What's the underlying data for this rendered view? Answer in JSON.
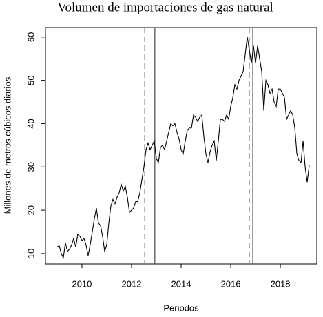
{
  "chart_data": {
    "type": "line",
    "title": "Volumen de importaciones de gas natural",
    "xlabel": "Periodos",
    "ylabel": "Millones de metros cúbicos diarios",
    "color": "#000000",
    "xlim": [
      2008.53,
      2019.47
    ],
    "ylim": [
      7.6,
      62.2
    ],
    "xticks": [
      2010,
      2012,
      2014,
      2016,
      2018
    ],
    "yticks": [
      10,
      20,
      30,
      40,
      50,
      60
    ],
    "vlines": [
      {
        "x": 2012.53,
        "style": "dashed"
      },
      {
        "x": 2012.94,
        "style": "solid"
      },
      {
        "x": 2016.75,
        "style": "dashed"
      },
      {
        "x": 2016.89,
        "style": "solid"
      }
    ],
    "x": [
      2009,
      2009.083,
      2009.167,
      2009.25,
      2009.333,
      2009.417,
      2009.5,
      2009.583,
      2009.667,
      2009.75,
      2009.833,
      2009.917,
      2010,
      2010.083,
      2010.167,
      2010.25,
      2010.333,
      2010.417,
      2010.5,
      2010.583,
      2010.667,
      2010.75,
      2010.833,
      2010.917,
      2011,
      2011.083,
      2011.167,
      2011.25,
      2011.333,
      2011.417,
      2011.5,
      2011.583,
      2011.667,
      2011.75,
      2011.833,
      2011.917,
      2012,
      2012.083,
      2012.167,
      2012.25,
      2012.333,
      2012.417,
      2012.5,
      2012.583,
      2012.667,
      2012.75,
      2012.833,
      2012.917,
      2013,
      2013.083,
      2013.167,
      2013.25,
      2013.333,
      2013.417,
      2013.5,
      2013.583,
      2013.667,
      2013.75,
      2013.833,
      2013.917,
      2014,
      2014.083,
      2014.167,
      2014.25,
      2014.333,
      2014.417,
      2014.5,
      2014.583,
      2014.667,
      2014.75,
      2014.833,
      2014.917,
      2015,
      2015.083,
      2015.167,
      2015.25,
      2015.333,
      2015.417,
      2015.5,
      2015.583,
      2015.667,
      2015.75,
      2015.833,
      2015.917,
      2016,
      2016.083,
      2016.167,
      2016.25,
      2016.333,
      2016.417,
      2016.5,
      2016.583,
      2016.667,
      2016.75,
      2016.833,
      2016.917,
      2017,
      2017.083,
      2017.167,
      2017.25,
      2017.333,
      2017.417,
      2017.5,
      2017.583,
      2017.667,
      2017.75,
      2017.833,
      2017.917,
      2018,
      2018.083,
      2018.167,
      2018.25,
      2018.333,
      2018.417,
      2018.5,
      2018.583,
      2018.667,
      2018.75,
      2018.833,
      2018.917,
      2019,
      2019.083,
      2019.167
    ],
    "values": [
      11.5,
      11.8,
      10,
      9,
      12.5,
      10.5,
      11,
      12,
      13.5,
      11.5,
      14.5,
      14,
      13,
      13.5,
      12,
      9.5,
      12,
      15,
      18,
      20.5,
      17,
      16.5,
      14,
      10.5,
      12,
      17,
      21,
      22.5,
      21.5,
      23,
      24,
      26,
      24.5,
      25.5,
      23,
      19.5,
      20,
      20.5,
      22,
      22,
      24,
      27,
      30,
      34,
      35.5,
      34,
      35,
      36,
      32,
      31,
      34.5,
      35,
      34,
      36,
      38,
      40,
      39.5,
      40,
      38,
      36.5,
      34,
      33,
      36,
      38.5,
      39,
      39,
      42,
      41.5,
      40.5,
      41.5,
      42,
      37,
      33,
      31,
      33.5,
      35,
      36,
      31.5,
      36,
      41,
      41,
      40.5,
      42,
      41,
      44,
      46,
      49,
      48,
      50,
      51,
      52,
      56,
      60,
      57,
      54,
      58,
      54,
      58,
      55,
      52,
      43,
      50,
      49,
      47,
      48,
      45,
      44,
      48,
      48,
      47,
      46,
      41,
      42,
      43,
      42,
      39,
      33,
      31.5,
      31,
      36,
      30,
      26.5,
      30.5
    ]
  }
}
